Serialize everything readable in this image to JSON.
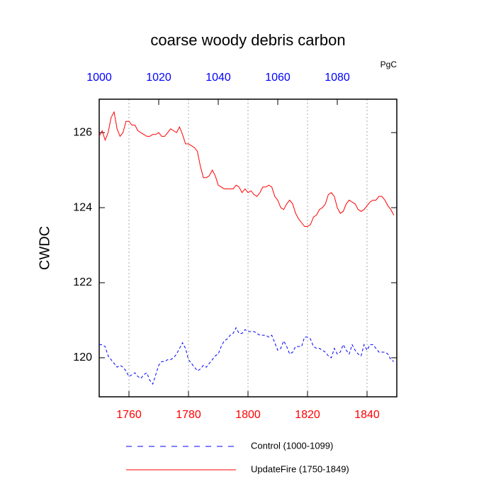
{
  "chart_data": {
    "type": "line",
    "title": "coarse woody debris carbon",
    "ylabel": "CWDC",
    "units_label": "PgC",
    "xlim": [
      1750,
      1850
    ],
    "xticks": [
      1760,
      1780,
      1800,
      1820,
      1840
    ],
    "xtick_color": "#ff0000",
    "x2lim": [
      1000,
      1100
    ],
    "x2ticks": [
      1000,
      1020,
      1040,
      1060,
      1080
    ],
    "x2tick_color": "#0000ff",
    "ylim": [
      118.96,
      126.89
    ],
    "yticks": [
      120,
      122,
      124,
      126
    ],
    "grid": true,
    "series": [
      {
        "name": "Control (1000-1099)",
        "color": "#0000ff",
        "dash": true,
        "axis": "x2",
        "x": [
          1000,
          1001,
          1002,
          1003,
          1004,
          1005,
          1006,
          1007,
          1008,
          1009,
          1010,
          1011,
          1012,
          1013,
          1014,
          1015,
          1016,
          1017,
          1018,
          1019,
          1020,
          1021,
          1022,
          1023,
          1024,
          1025,
          1026,
          1027,
          1028,
          1029,
          1030,
          1031,
          1032,
          1033,
          1034,
          1035,
          1036,
          1037,
          1038,
          1039,
          1040,
          1041,
          1042,
          1043,
          1044,
          1045,
          1046,
          1047,
          1048,
          1049,
          1050,
          1051,
          1052,
          1053,
          1054,
          1055,
          1056,
          1057,
          1058,
          1059,
          1060,
          1061,
          1062,
          1063,
          1064,
          1065,
          1066,
          1067,
          1068,
          1069,
          1070,
          1071,
          1072,
          1073,
          1074,
          1075,
          1076,
          1077,
          1078,
          1079,
          1080,
          1081,
          1082,
          1083,
          1084,
          1085,
          1086,
          1087,
          1088,
          1089,
          1090,
          1091,
          1092,
          1093,
          1094,
          1095,
          1096,
          1097,
          1098,
          1099
        ],
        "values": [
          120.35,
          120.35,
          120.3,
          120.05,
          119.95,
          119.85,
          119.75,
          119.8,
          119.75,
          119.65,
          119.5,
          119.55,
          119.6,
          119.5,
          119.45,
          119.55,
          119.6,
          119.4,
          119.3,
          119.55,
          119.8,
          119.9,
          119.9,
          119.95,
          119.95,
          120.0,
          120.1,
          120.25,
          120.4,
          120.25,
          119.95,
          119.85,
          119.75,
          119.65,
          119.7,
          119.8,
          119.75,
          119.85,
          119.95,
          120.05,
          120.1,
          120.3,
          120.45,
          120.5,
          120.6,
          120.65,
          120.8,
          120.65,
          120.65,
          120.75,
          120.7,
          120.7,
          120.7,
          120.65,
          120.6,
          120.6,
          120.6,
          120.55,
          120.6,
          120.4,
          120.2,
          120.25,
          120.45,
          120.3,
          120.1,
          120.15,
          120.3,
          120.3,
          120.3,
          120.55,
          120.55,
          120.5,
          120.3,
          120.25,
          120.25,
          120.2,
          120.15,
          120.05,
          120.0,
          120.25,
          120.1,
          120.15,
          120.35,
          120.2,
          120.1,
          120.35,
          120.2,
          120.1,
          120.05,
          120.35,
          120.2,
          120.35,
          120.35,
          120.25,
          120.15,
          120.15,
          120.15,
          120.1,
          119.95,
          119.9
        ]
      },
      {
        "name": "UpdateFire (1750-1849)",
        "color": "#ff0000",
        "dash": false,
        "x": [
          1750,
          1751,
          1752,
          1753,
          1754,
          1755,
          1756,
          1757,
          1758,
          1759,
          1760,
          1761,
          1762,
          1763,
          1764,
          1765,
          1766,
          1767,
          1768,
          1769,
          1770,
          1771,
          1772,
          1773,
          1774,
          1775,
          1776,
          1777,
          1778,
          1779,
          1780,
          1781,
          1782,
          1783,
          1784,
          1785,
          1786,
          1787,
          1788,
          1789,
          1790,
          1791,
          1792,
          1793,
          1794,
          1795,
          1796,
          1797,
          1798,
          1799,
          1800,
          1801,
          1802,
          1803,
          1804,
          1805,
          1806,
          1807,
          1808,
          1809,
          1810,
          1811,
          1812,
          1813,
          1814,
          1815,
          1816,
          1817,
          1818,
          1819,
          1820,
          1821,
          1822,
          1823,
          1824,
          1825,
          1826,
          1827,
          1828,
          1829,
          1830,
          1831,
          1832,
          1833,
          1834,
          1835,
          1836,
          1837,
          1838,
          1839,
          1840,
          1841,
          1842,
          1843,
          1844,
          1845,
          1846,
          1847,
          1848,
          1849
        ],
        "values": [
          125.9,
          126.05,
          125.8,
          126.0,
          126.4,
          126.55,
          126.1,
          125.9,
          126.0,
          126.3,
          126.3,
          126.2,
          126.2,
          126.05,
          126.0,
          125.95,
          125.9,
          125.9,
          125.95,
          125.95,
          126.0,
          125.9,
          125.9,
          126.0,
          126.1,
          126.05,
          126.0,
          126.15,
          125.95,
          125.7,
          125.7,
          125.65,
          125.6,
          125.5,
          125.1,
          124.8,
          124.8,
          124.85,
          125.0,
          124.85,
          124.6,
          124.55,
          124.5,
          124.5,
          124.5,
          124.5,
          124.6,
          124.55,
          124.4,
          124.5,
          124.4,
          124.45,
          124.35,
          124.3,
          124.4,
          124.55,
          124.55,
          124.6,
          124.55,
          124.3,
          124.2,
          124.0,
          123.95,
          124.1,
          124.2,
          124.1,
          123.85,
          123.7,
          123.6,
          123.5,
          123.5,
          123.55,
          123.75,
          123.8,
          123.95,
          124.0,
          124.1,
          124.35,
          124.4,
          124.3,
          124.0,
          123.85,
          123.9,
          124.1,
          124.2,
          124.15,
          124.1,
          123.95,
          123.9,
          123.95,
          124.05,
          124.15,
          124.2,
          124.2,
          124.3,
          124.3,
          124.2,
          124.05,
          123.95,
          123.8
        ]
      }
    ]
  }
}
